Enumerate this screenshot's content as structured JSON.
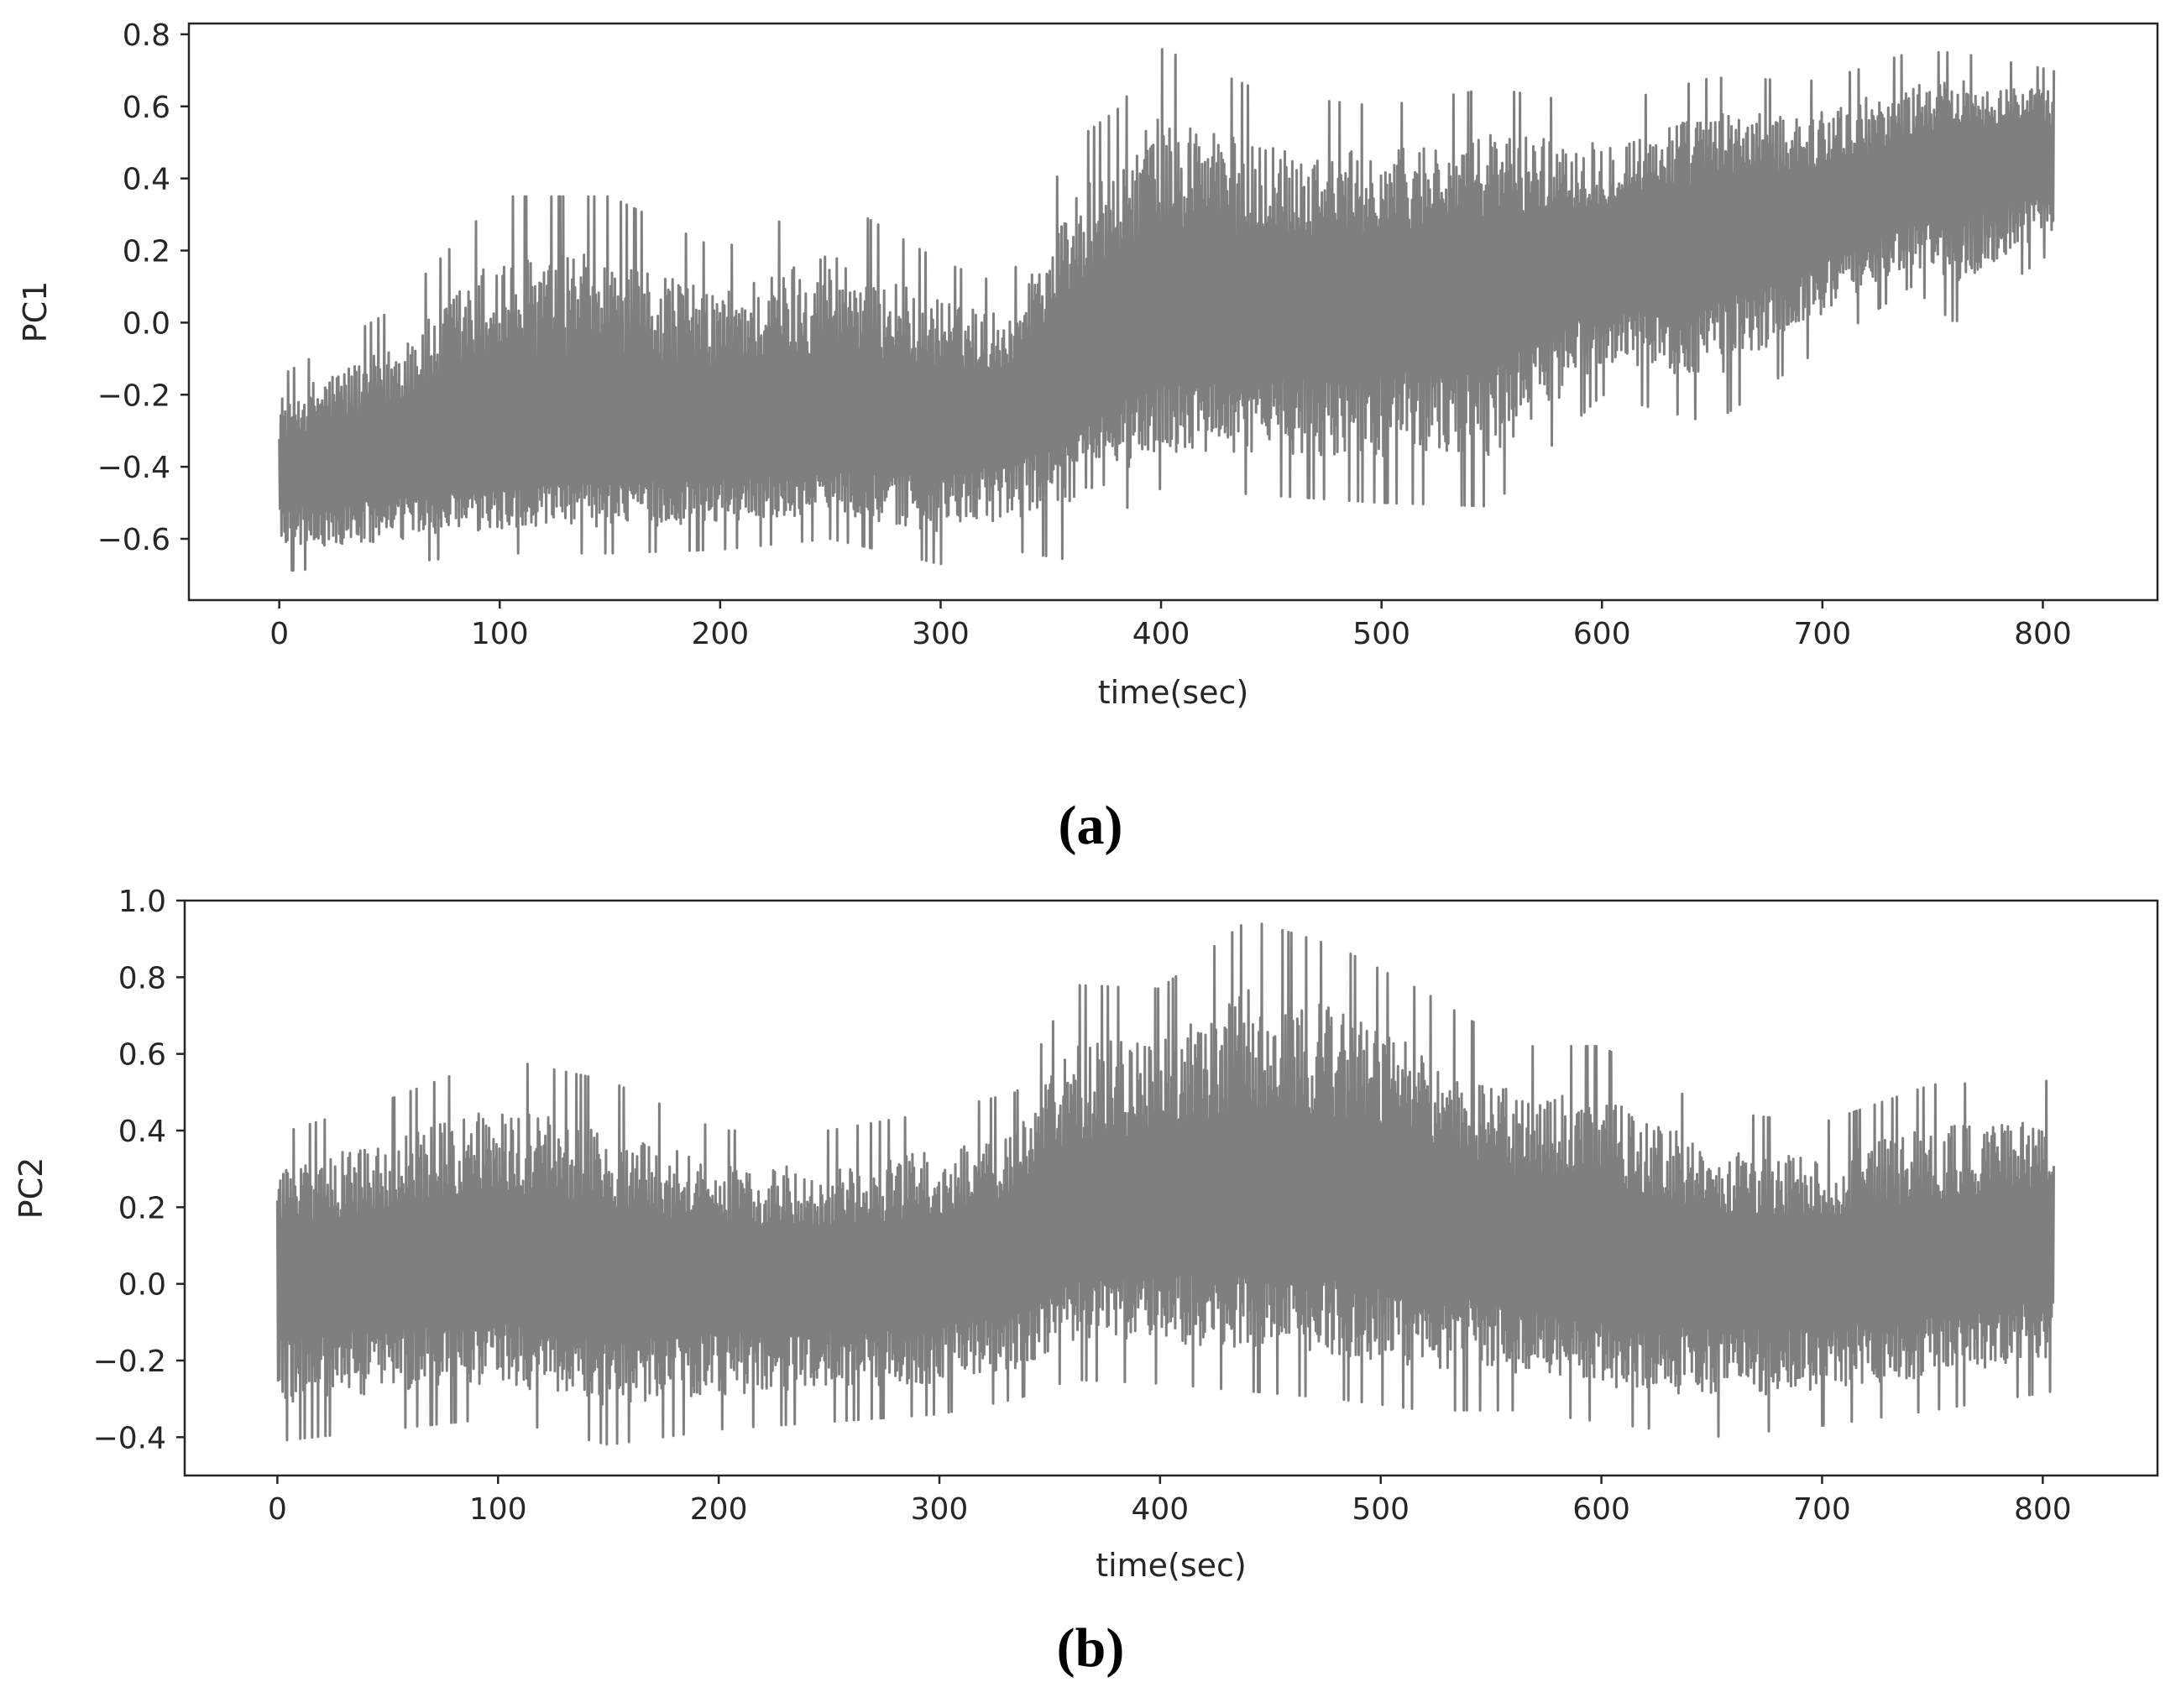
{
  "chart_data": [
    {
      "type": "line",
      "caption": "(a)",
      "xlabel": "time(sec)",
      "ylabel": "PC1",
      "xlim": [
        -41,
        852
      ],
      "ylim": [
        -0.77,
        0.83
      ],
      "xticks": [
        0,
        100,
        200,
        300,
        400,
        500,
        600,
        700,
        800
      ],
      "xtick_labels": [
        "0",
        "100",
        "200",
        "300",
        "400",
        "500",
        "600",
        "700",
        "800"
      ],
      "yticks": [
        -0.6,
        -0.4,
        -0.2,
        0.0,
        0.2,
        0.4,
        0.6,
        0.8
      ],
      "ytick_labels": [
        "−0.6",
        "−0.4",
        "−0.2",
        "0.0",
        "0.2",
        "0.4",
        "0.6",
        "0.8"
      ],
      "grid": false,
      "line_color": "#7f7f7f",
      "series": [
        {
          "x": [
            0,
            50,
            100,
            150,
            200,
            250,
            300,
            330,
            360,
            380,
            400,
            450,
            500,
            550,
            600,
            650,
            700,
            740,
            760,
            805
          ],
          "center": [
            -0.42,
            -0.39,
            -0.36,
            -0.33,
            -0.32,
            -0.31,
            -0.29,
            -0.26,
            -0.14,
            -0.04,
            -0.02,
            0.02,
            0.05,
            0.1,
            0.17,
            0.24,
            0.3,
            0.38,
            0.44,
            0.46
          ],
          "upper_envelope": [
            -0.15,
            0.03,
            0.35,
            0.35,
            0.2,
            0.35,
            0.17,
            0.1,
            0.5,
            0.59,
            0.76,
            0.63,
            0.6,
            0.65,
            0.6,
            0.68,
            0.67,
            0.75,
            0.75,
            0.7
          ],
          "lower_envelope": [
            -0.69,
            -0.67,
            -0.64,
            -0.64,
            -0.63,
            -0.6,
            -0.67,
            -0.63,
            -0.66,
            -0.53,
            -0.46,
            -0.48,
            -0.5,
            -0.51,
            -0.2,
            -0.28,
            -0.07,
            0.1,
            0.0,
            0.2
          ]
        }
      ]
    },
    {
      "type": "line",
      "caption": "(b)",
      "xlabel": "time(sec)",
      "ylabel": "PC2",
      "xlim": [
        -42,
        852
      ],
      "ylim": [
        -0.5,
        1.0
      ],
      "xticks": [
        0,
        100,
        200,
        300,
        400,
        500,
        600,
        700,
        800
      ],
      "xtick_labels": [
        "0",
        "100",
        "200",
        "300",
        "400",
        "500",
        "600",
        "700",
        "800"
      ],
      "yticks": [
        -0.4,
        -0.2,
        0.0,
        0.2,
        0.4,
        0.6,
        0.8,
        1.0
      ],
      "ytick_labels": [
        "−0.4",
        "−0.2",
        "0.0",
        "0.2",
        "0.4",
        "0.6",
        "0.8",
        "1.0"
      ],
      "grid": false,
      "line_color": "#7f7f7f",
      "series": [
        {
          "x": [
            0,
            50,
            100,
            150,
            200,
            250,
            300,
            335,
            360,
            400,
            440,
            480,
            520,
            560,
            600,
            650,
            700,
            750,
            805
          ],
          "center": [
            0.02,
            0.03,
            0.04,
            0.02,
            0.01,
            0.01,
            0.02,
            0.05,
            0.15,
            0.18,
            0.2,
            0.18,
            0.14,
            0.1,
            0.05,
            0.04,
            0.03,
            0.05,
            0.1
          ],
          "upper_envelope": [
            0.39,
            0.48,
            0.59,
            0.53,
            0.4,
            0.4,
            0.45,
            0.5,
            0.78,
            0.77,
            0.95,
            0.88,
            0.76,
            0.62,
            0.62,
            0.45,
            0.42,
            0.52,
            0.53
          ],
          "lower_envelope": [
            -0.41,
            -0.38,
            -0.35,
            -0.42,
            -0.38,
            -0.36,
            -0.34,
            -0.3,
            -0.25,
            -0.26,
            -0.28,
            -0.3,
            -0.33,
            -0.33,
            -0.36,
            -0.4,
            -0.37,
            -0.33,
            -0.28
          ]
        }
      ]
    }
  ]
}
